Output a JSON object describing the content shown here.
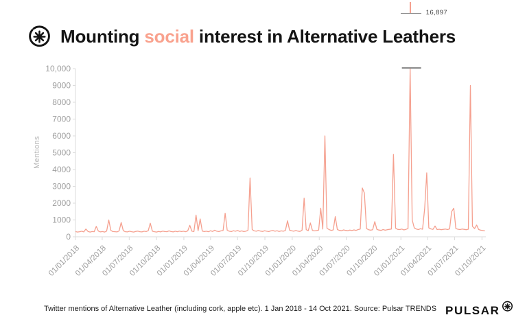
{
  "title": {
    "prefix": "Mounting ",
    "highlight": "social",
    "suffix": " interest in Alternative Leathers"
  },
  "annotation": {
    "label": "16,897"
  },
  "footer": {
    "caption": "Twitter mentions of Alternative Leather (including cork, apple etc). 1 Jan 2018 - 14 Oct 2021. Source: Pulsar TRENDS",
    "brand": "PULSAR"
  },
  "colors": {
    "line": "#F5A08F",
    "highlight": "#F9A28E",
    "axis": "#DBDBDB",
    "tick_label": "#9E9E9E",
    "clip_cap": "#8A8A8A",
    "ink": "#141414"
  },
  "chart_data": {
    "type": "line",
    "title": "Mounting social interest in Alternative Leathers",
    "xlabel": "",
    "ylabel": "Mentions",
    "ylim": [
      0,
      10000
    ],
    "clip_max": 10000,
    "grid": false,
    "legend": "none",
    "y_tick_labels": [
      "0",
      "1000",
      "2000",
      "3000",
      "4000",
      "5000",
      "6000",
      "7000",
      "8000",
      "9000",
      "10,000"
    ],
    "x_tick_labels": [
      "01/01/2018",
      "01/04/2018",
      "01/07/2018",
      "01/10/2018",
      "01/01/2019",
      "01/04/2019",
      "01/07/2019",
      "01/10/2019",
      "01/01/2020",
      "01/04/2020",
      "01/07/2020",
      "01/10/2020",
      "01/01/2021",
      "01/04/2021",
      "01/07/2021",
      "01/10/2021"
    ],
    "date_range": {
      "start": "01/01/2018",
      "end": "14/10/2021"
    },
    "peak": {
      "label": "16,897",
      "value": 16897,
      "approx_date": "01/02/2021"
    },
    "series": [
      {
        "name": "Twitter mentions of Alternative Leather",
        "interval_days": 7,
        "values": [
          310,
          280,
          300,
          330,
          290,
          460,
          320,
          280,
          310,
          300,
          620,
          340,
          290,
          310,
          280,
          340,
          1000,
          380,
          310,
          300,
          290,
          350,
          850,
          360,
          300,
          290,
          330,
          300,
          280,
          320,
          340,
          300,
          290,
          330,
          310,
          360,
          810,
          330,
          300,
          280,
          320,
          290,
          340,
          310,
          300,
          350,
          310,
          290,
          330,
          300,
          340,
          310,
          330,
          300,
          350,
          680,
          330,
          310,
          1290,
          360,
          1060,
          340,
          310,
          330,
          300,
          360,
          320,
          390,
          330,
          310,
          350,
          370,
          1400,
          390,
          330,
          310,
          360,
          330,
          370,
          320,
          350,
          310,
          330,
          390,
          3500,
          430,
          350,
          330,
          370,
          340,
          320,
          360,
          330,
          310,
          350,
          370,
          330,
          360,
          320,
          350,
          330,
          370,
          950,
          390,
          360,
          330,
          370,
          340,
          320,
          390,
          2300,
          430,
          360,
          820,
          380,
          350,
          370,
          400,
          1700,
          460,
          6000,
          510,
          430,
          380,
          410,
          1200,
          430,
          380,
          360,
          410,
          380,
          360,
          400,
          370,
          410,
          380,
          430,
          460,
          2900,
          2600,
          490,
          420,
          390,
          420,
          900,
          440,
          400,
          380,
          430,
          390,
          420,
          440,
          460,
          4900,
          510,
          440,
          430,
          460,
          410,
          440,
          490,
          16897,
          1000,
          530,
          460,
          430,
          480,
          450,
          1700,
          3800,
          530,
          470,
          440,
          640,
          430,
          450,
          420,
          440,
          460,
          430,
          470,
          1500,
          1700,
          490,
          450,
          430,
          460,
          440,
          420,
          450,
          9000,
          620,
          490,
          700,
          430,
          390,
          370,
          350
        ]
      }
    ]
  }
}
